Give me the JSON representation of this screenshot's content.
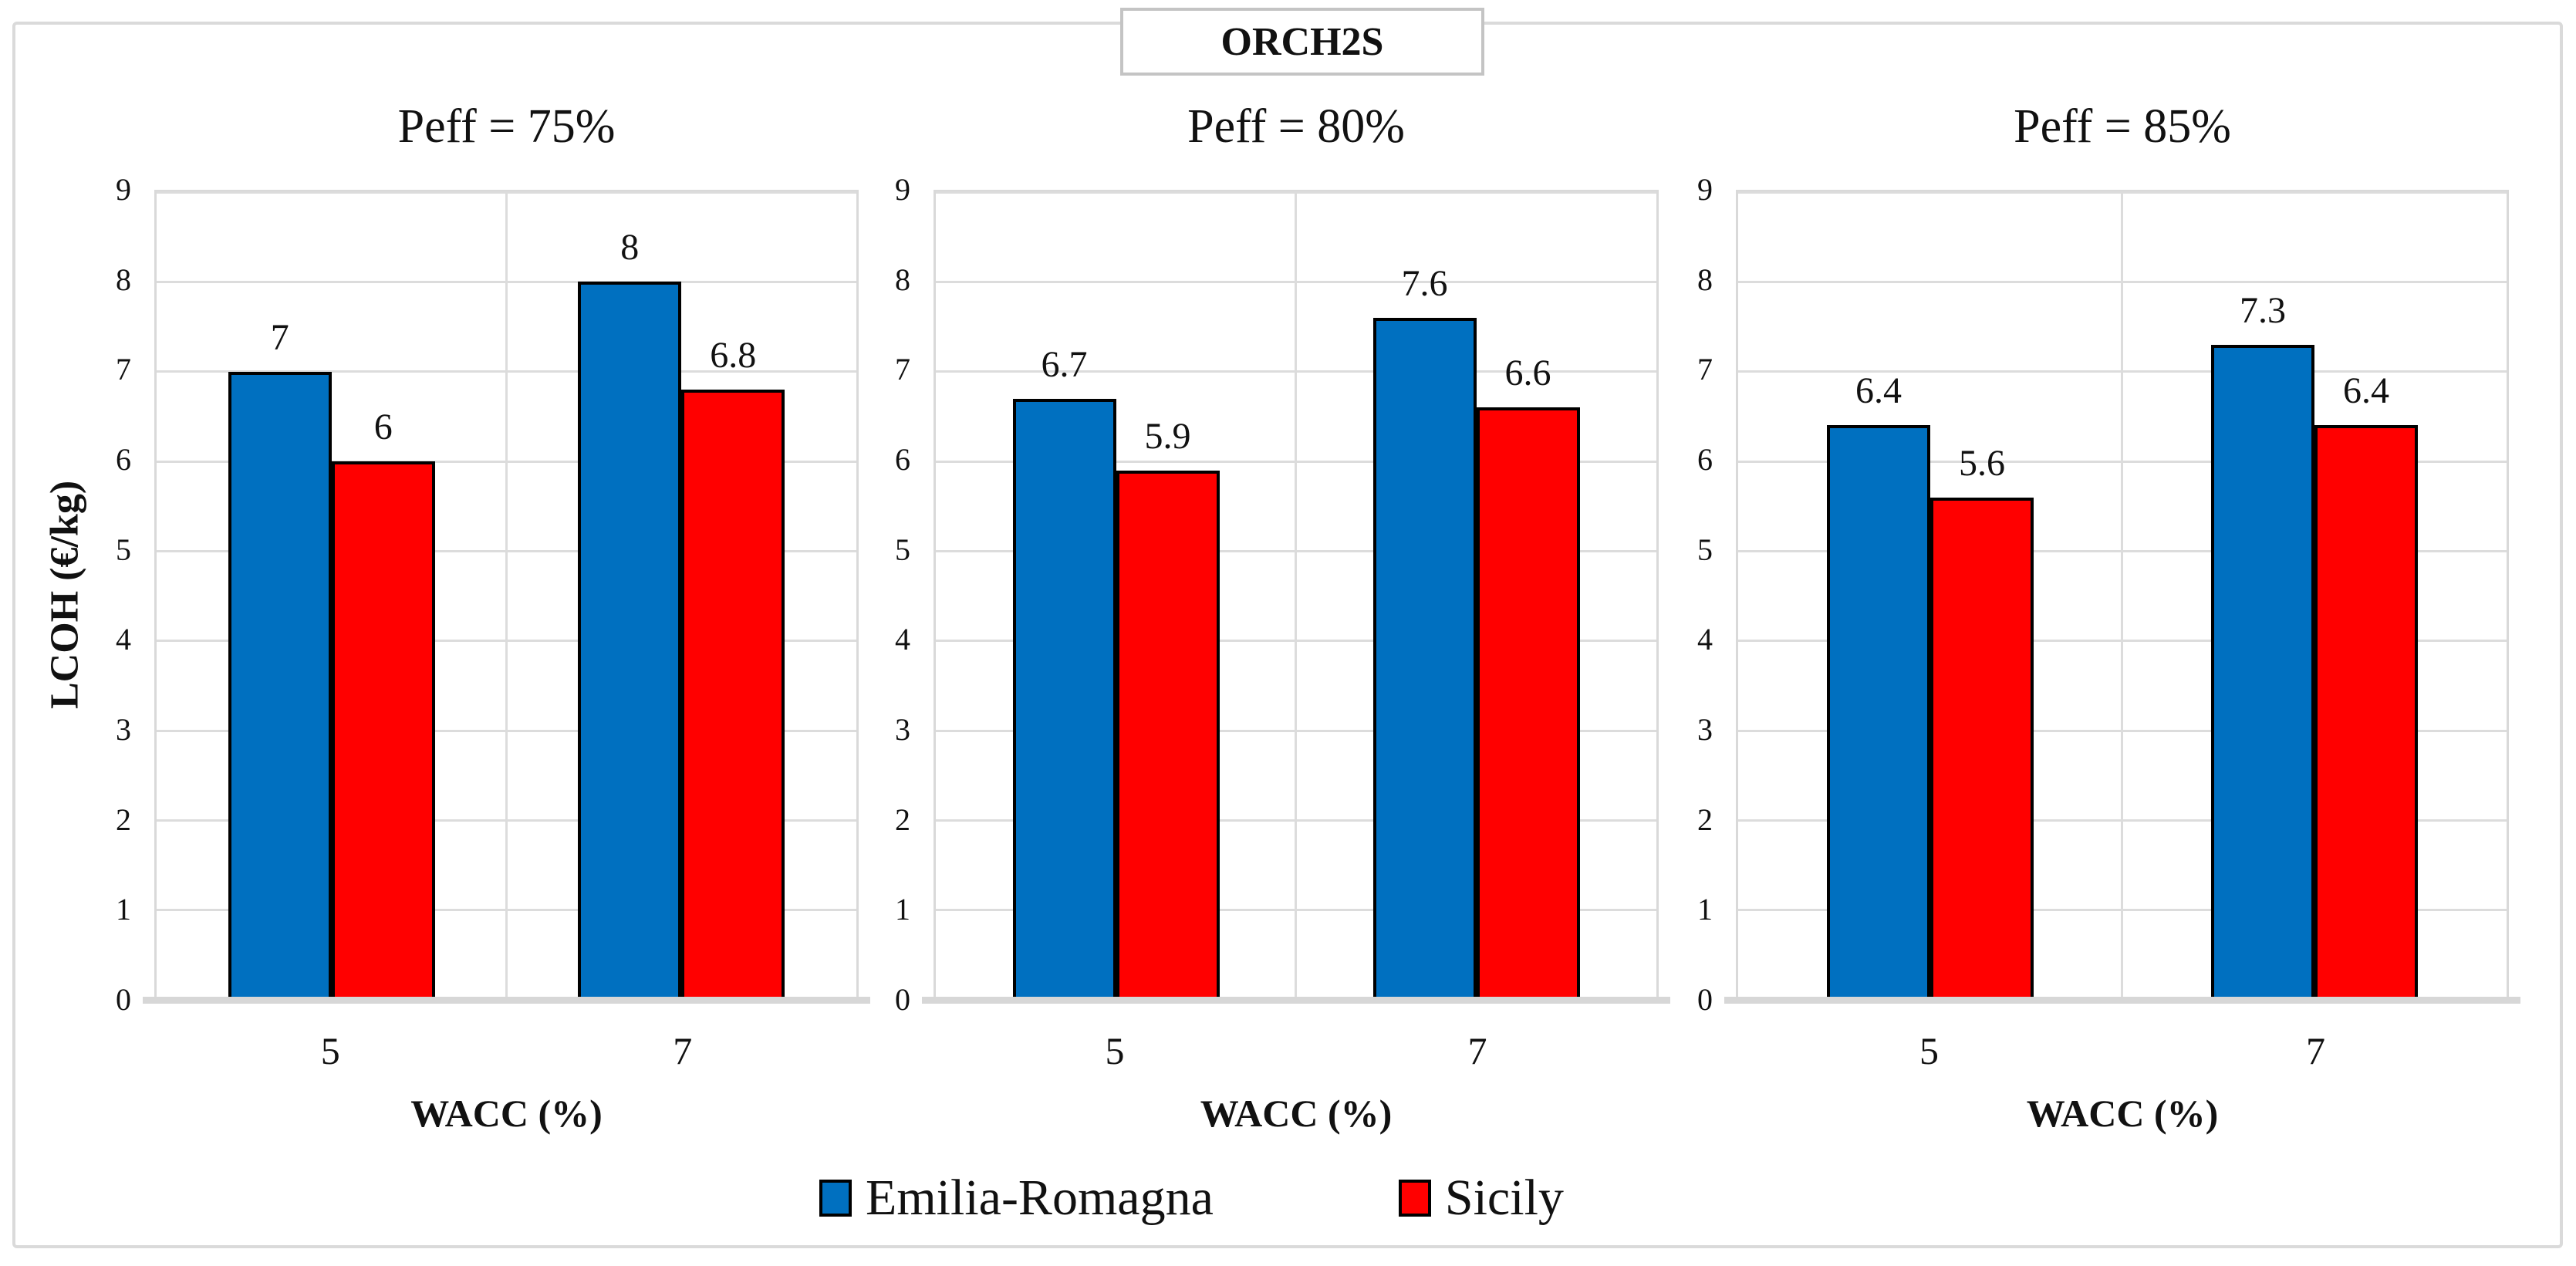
{
  "figure": {
    "title": "ORCH2S",
    "y_axis_title": "LCOH (€/kg)",
    "x_axis_title": "WACC (%)",
    "legend": [
      {
        "label": "Emilia-Romagna",
        "color": "#0070C0"
      },
      {
        "label": "Sicily",
        "color": "#FF0000"
      }
    ]
  },
  "chart_data": [
    {
      "type": "bar",
      "title": "Peff = 75%",
      "categories": [
        "5",
        "7"
      ],
      "xlabel": "WACC (%)",
      "ylabel": "LCOH (€/kg)",
      "ylim": [
        0,
        9
      ],
      "yticks": [
        0,
        1,
        2,
        3,
        4,
        5,
        6,
        7,
        8,
        9
      ],
      "grid": true,
      "legend_position": "bottom",
      "series": [
        {
          "name": "Emilia-Romagna",
          "color": "#0070C0",
          "values": [
            7,
            8
          ],
          "labels": [
            "7",
            "8"
          ]
        },
        {
          "name": "Sicily",
          "color": "#FF0000",
          "values": [
            6,
            6.8
          ],
          "labels": [
            "6",
            "6.8"
          ]
        }
      ]
    },
    {
      "type": "bar",
      "title": "Peff = 80%",
      "categories": [
        "5",
        "7"
      ],
      "xlabel": "WACC (%)",
      "ylim": [
        0,
        9
      ],
      "yticks": [
        0,
        1,
        2,
        3,
        4,
        5,
        6,
        7,
        8,
        9
      ],
      "grid": true,
      "series": [
        {
          "name": "Emilia-Romagna",
          "color": "#0070C0",
          "values": [
            6.7,
            7.6
          ],
          "labels": [
            "6.7",
            "7.6"
          ]
        },
        {
          "name": "Sicily",
          "color": "#FF0000",
          "values": [
            5.9,
            6.6
          ],
          "labels": [
            "5.9",
            "6.6"
          ]
        }
      ]
    },
    {
      "type": "bar",
      "title": "Peff = 85%",
      "categories": [
        "5",
        "7"
      ],
      "xlabel": "WACC (%)",
      "ylim": [
        0,
        9
      ],
      "yticks": [
        0,
        1,
        2,
        3,
        4,
        5,
        6,
        7,
        8,
        9
      ],
      "grid": true,
      "series": [
        {
          "name": "Emilia-Romagna",
          "color": "#0070C0",
          "values": [
            6.4,
            7.3
          ],
          "labels": [
            "6.4",
            "7.3"
          ]
        },
        {
          "name": "Sicily",
          "color": "#FF0000",
          "values": [
            5.6,
            6.4
          ],
          "labels": [
            "5.6",
            "6.4"
          ]
        }
      ]
    }
  ]
}
